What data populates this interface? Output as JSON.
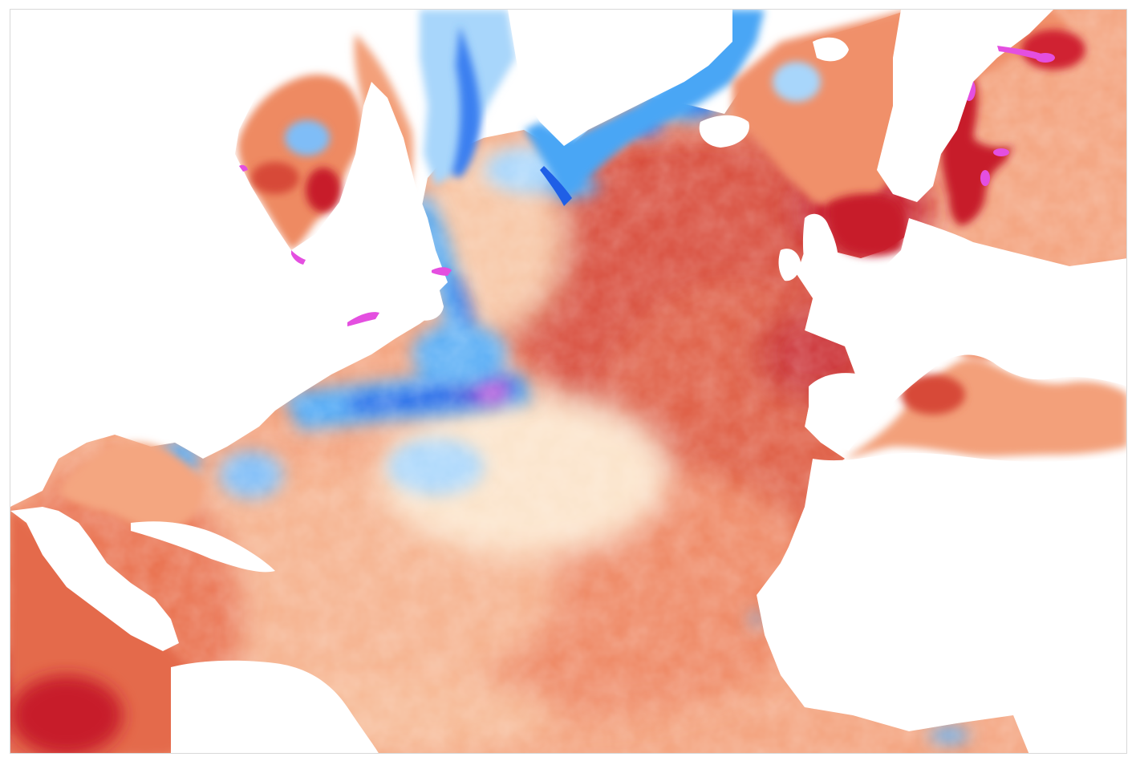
{
  "map": {
    "type": "sea-surface-temperature-anomaly",
    "region": "North Atlantic",
    "palette": {
      "cold_extreme": "#e05ae0",
      "cold_deep": "#3a1fd0",
      "cold_strong": "#1f5fe6",
      "cold_mid": "#4aa6f5",
      "cold_light": "#a8d6fb",
      "neutral": "#fff6de",
      "warm_light": "#fbd0b0",
      "warm_mid": "#f2956b",
      "warm_strong": "#e06046",
      "warm_deep": "#c71a2a",
      "warm_extreme": "#e44fe0",
      "land": "#ffffff",
      "frame": "#d8d8d8"
    },
    "legend_visible": false,
    "labels_visible": false
  }
}
